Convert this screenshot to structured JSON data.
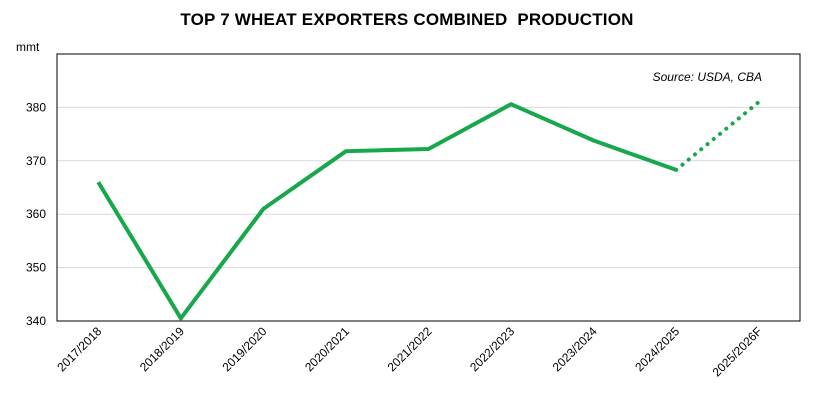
{
  "chart_data": {
    "type": "line",
    "title": "TOP 7 WHEAT EXPORTERS COMBINED  PRODUCTION",
    "ylabel": "mmt",
    "xlabel": "",
    "source_note": "Source: USDA, CBA",
    "categories": [
      "2017/2018",
      "2018/2019",
      "2019/2020",
      "2020/2021",
      "2021/2022",
      "2022/2023",
      "2023/2024",
      "2024/2025",
      "2025/2026F"
    ],
    "yticks": [
      "340",
      "350",
      "360",
      "370",
      "380"
    ],
    "ylim": [
      340,
      390
    ],
    "grid": true,
    "legend": "none",
    "series": [
      {
        "values": [
          366,
          340.5,
          361,
          371.8,
          372.2,
          380.6,
          373.8,
          368.3,
          381
        ],
        "forecast_from_index": 7,
        "color": "#17A84B"
      }
    ]
  }
}
